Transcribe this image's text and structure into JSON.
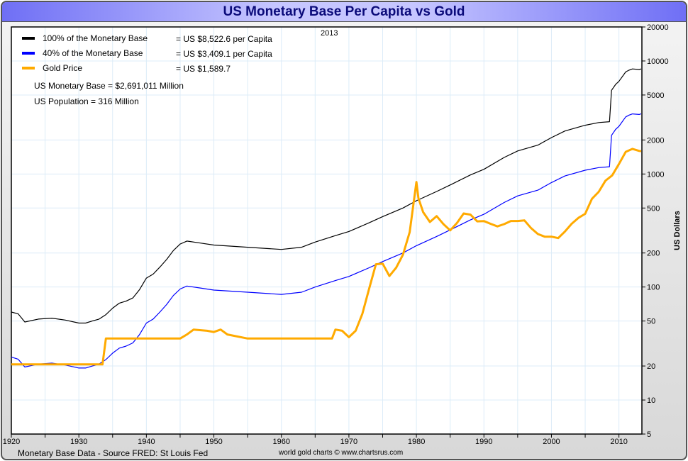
{
  "chart_data": {
    "type": "line",
    "title": "US Monetary Base Per Capita vs Gold",
    "ylabel": "US Dollars",
    "yscale": "log",
    "ylim": [
      5,
      20000
    ],
    "xlim": [
      1920,
      2013.4
    ],
    "grid": true,
    "year_label": "2013",
    "yticks": [
      20000,
      10000,
      5000,
      2000,
      1000,
      500,
      200,
      100,
      50,
      20,
      10,
      5
    ],
    "xticks": [
      1920,
      1930,
      1940,
      1950,
      1960,
      1970,
      1980,
      1990,
      2000,
      2010
    ],
    "legend_placement": "top-left",
    "legend": [
      {
        "name": "100% of the Monetary Base",
        "value": "= US $8,522.6 per Capita",
        "color": "#000000"
      },
      {
        "name": "40% of the Monetary Base",
        "value": "= US $3,409.1 per Capita",
        "color": "#0000ff"
      },
      {
        "name": "Gold Price",
        "value": "= US $1,589.7",
        "color": "#ffaa00"
      }
    ],
    "annotations": [
      "US Monetary Base = $2,691,011 Million",
      "US Population = 316 Million"
    ],
    "series": [
      {
        "name": "100% of the Monetary Base",
        "color": "#000000",
        "x": [
          1920,
          1921,
          1922,
          1924,
          1926,
          1928,
          1930,
          1931,
          1932,
          1933,
          1934,
          1935,
          1936,
          1937,
          1938,
          1939,
          1940,
          1941,
          1942,
          1943,
          1944,
          1945,
          1946,
          1948,
          1950,
          1955,
          1960,
          1963,
          1965,
          1968,
          1970,
          1973,
          1975,
          1978,
          1980,
          1983,
          1985,
          1988,
          1990,
          1993,
          1995,
          1998,
          2000,
          2002,
          2005,
          2007,
          2008.6,
          2008.9,
          2009.5,
          2010,
          2011,
          2011.5,
          2012,
          2013,
          2013.3
        ],
        "y": [
          60,
          58,
          49,
          52,
          53,
          51,
          48,
          48,
          50,
          52,
          57,
          65,
          72,
          75,
          80,
          95,
          120,
          130,
          150,
          175,
          210,
          240,
          255,
          245,
          235,
          225,
          215,
          225,
          250,
          285,
          310,
          370,
          420,
          500,
          580,
          700,
          800,
          980,
          1100,
          1400,
          1600,
          1800,
          2100,
          2400,
          2700,
          2850,
          2900,
          5500,
          6200,
          6600,
          8000,
          8300,
          8500,
          8400,
          8500
        ]
      },
      {
        "name": "40% of the Monetary Base",
        "color": "#0000ff",
        "x": [
          1920,
          1921,
          1922,
          1924,
          1926,
          1928,
          1930,
          1931,
          1932,
          1933,
          1934,
          1935,
          1936,
          1937,
          1938,
          1939,
          1940,
          1941,
          1942,
          1943,
          1944,
          1945,
          1946,
          1948,
          1950,
          1955,
          1960,
          1963,
          1965,
          1968,
          1970,
          1973,
          1975,
          1978,
          1980,
          1983,
          1985,
          1988,
          1990,
          1993,
          1995,
          1998,
          2000,
          2002,
          2005,
          2007,
          2008.6,
          2008.9,
          2009.5,
          2010,
          2011,
          2011.5,
          2012,
          2013,
          2013.3
        ],
        "y": [
          24,
          23,
          19.6,
          20.8,
          21.2,
          20.4,
          19.2,
          19.2,
          20,
          20.8,
          22.8,
          26,
          28.8,
          30,
          32,
          38,
          48,
          52,
          60,
          70,
          84,
          96,
          102,
          98,
          94,
          90,
          86,
          90,
          100,
          114,
          124,
          148,
          168,
          200,
          232,
          280,
          320,
          392,
          440,
          560,
          640,
          720,
          840,
          960,
          1080,
          1140,
          1160,
          2200,
          2480,
          2640,
          3200,
          3320,
          3400,
          3360,
          3409
        ]
      },
      {
        "name": "Gold Price",
        "color": "#ffaa00",
        "x": [
          1920,
          1933.5,
          1934,
          1945,
          1946,
          1947,
          1949,
          1950,
          1951,
          1952,
          1955,
          1960,
          1967.5,
          1968,
          1969,
          1970,
          1971,
          1972,
          1973,
          1974,
          1975,
          1976,
          1977,
          1978,
          1979,
          1980,
          1980.3,
          1981,
          1982,
          1983,
          1984,
          1985,
          1986,
          1987,
          1988,
          1989,
          1990,
          1991,
          1992,
          1993,
          1994,
          1995,
          1996,
          1997,
          1998,
          1999,
          2000,
          2001,
          2002,
          2003,
          2004,
          2005,
          2006,
          2007,
          2008,
          2009,
          2010,
          2011,
          2012,
          2013,
          2013.3
        ],
        "y": [
          20.67,
          20.67,
          35,
          35,
          38,
          42,
          41,
          40,
          42,
          38,
          35,
          35,
          35,
          42,
          41,
          36,
          41,
          58,
          97,
          159,
          161,
          125,
          148,
          193,
          306,
          850,
          612,
          460,
          376,
          424,
          360,
          317,
          368,
          447,
          437,
          381,
          383,
          362,
          344,
          360,
          384,
          384,
          388,
          331,
          294,
          279,
          279,
          271,
          310,
          363,
          409,
          444,
          603,
          695,
          872,
          972,
          1225,
          1571,
          1669,
          1600,
          1589.7
        ]
      }
    ]
  },
  "footer": {
    "source": "Monetary Base Data - Source FRED: St Louis Fed",
    "credit": "world gold charts © www.chartsrus.com"
  }
}
